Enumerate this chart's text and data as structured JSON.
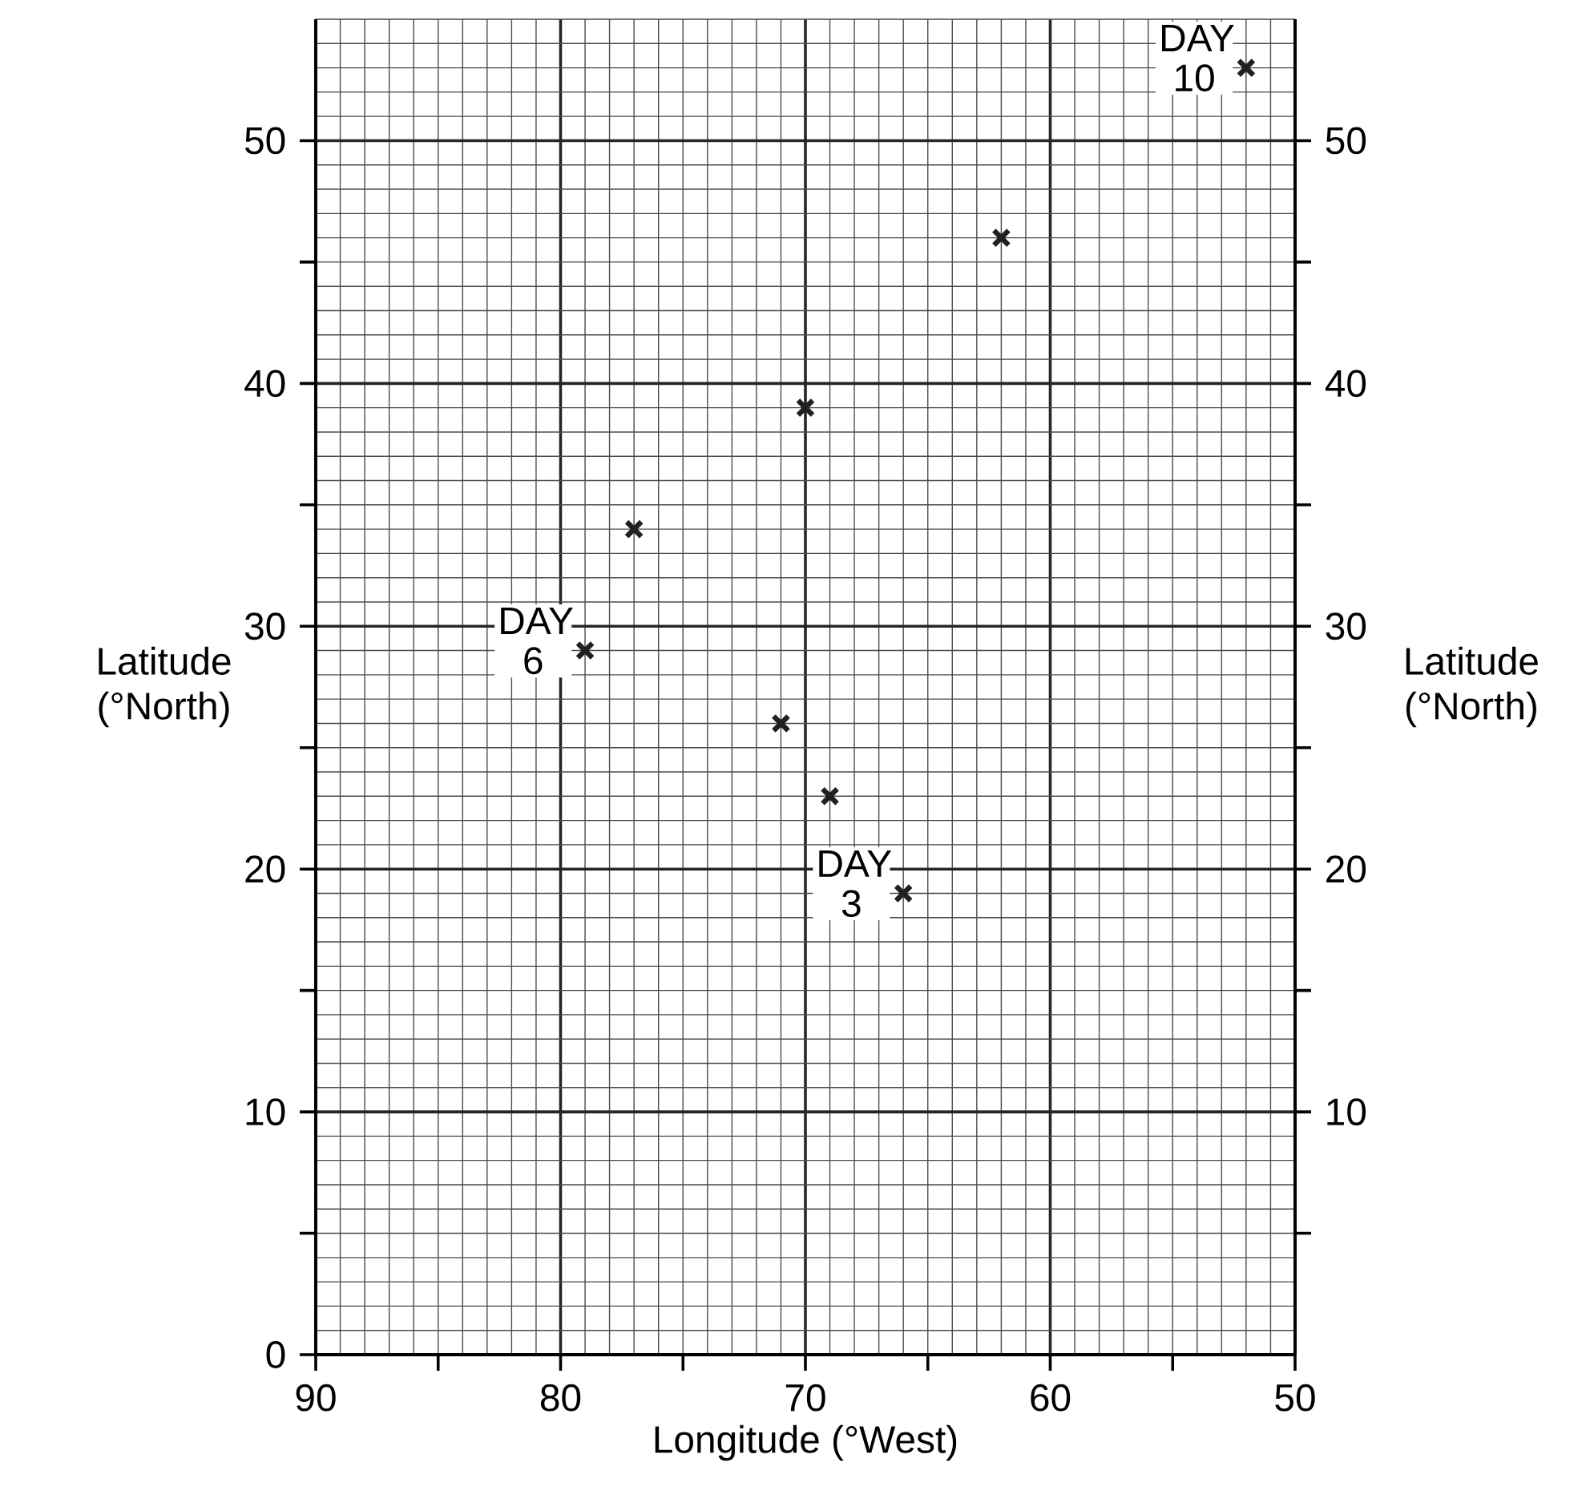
{
  "chart_data": {
    "type": "scatter",
    "xlabel": "Longitude (°West)",
    "ylabel": "Latitude (°North)",
    "y2label": "Latitude (°North)",
    "x": [
      52,
      62,
      70,
      77,
      79,
      71,
      69,
      66
    ],
    "series": [
      {
        "color": "#231f20",
        "values": [
          53,
          46,
          39,
          34,
          29,
          26,
          23,
          19
        ]
      }
    ],
    "marker": "cross",
    "grid": true,
    "xlim": [
      90,
      50
    ],
    "xticks": [
      90,
      {
        "value": 85,
        "label": null
      },
      80,
      {
        "value": 75,
        "label": null
      },
      70,
      {
        "value": 65,
        "label": null
      },
      60,
      {
        "value": 55,
        "label": null
      },
      50
    ],
    "ylim": [
      0,
      55
    ],
    "yticks": [
      0,
      {
        "value": 5,
        "label": null
      },
      10,
      {
        "value": 15,
        "label": null
      },
      20,
      {
        "value": 25,
        "label": null
      },
      30,
      {
        "value": 35,
        "label": null
      },
      40,
      {
        "value": 45,
        "label": null
      },
      50
    ],
    "y2lim": [
      0,
      55
    ],
    "y2ticks": [
      {
        "value": 5,
        "label": null
      },
      10,
      {
        "value": 15,
        "label": null
      },
      20,
      {
        "value": 25,
        "label": null
      },
      30,
      {
        "value": 35,
        "label": null
      },
      40,
      {
        "value": 45,
        "label": null
      },
      50
    ],
    "annotations": [
      {
        "text": "DAY 10",
        "x": 52,
        "y": 53
      },
      {
        "text": "DAY 6",
        "x": 79,
        "y": 29
      },
      {
        "text": "DAY 3",
        "x": 66,
        "y": 19
      }
    ]
  }
}
